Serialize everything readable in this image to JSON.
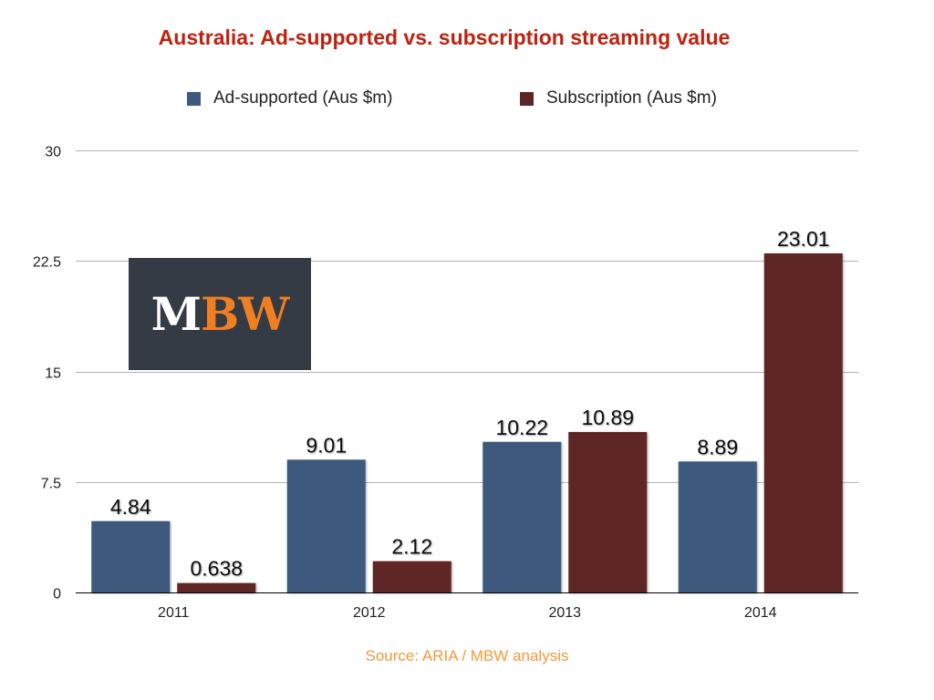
{
  "title": "Australia: Ad-supported vs. subscription streaming value",
  "source": "Source: ARIA / MBW analysis",
  "logo": {
    "text_part1": "M",
    "text_part2": "BW",
    "bg_color": "#353b45",
    "color1": "#ffffff",
    "color2": "#f07f22"
  },
  "colors": {
    "ad_supported": "#3e5a7e",
    "subscription": "#5e2526",
    "title": "#c0210f",
    "source": "#f39a3b"
  },
  "chart_data": {
    "type": "bar",
    "title": "Australia: Ad-supported vs. subscription streaming value",
    "xlabel": "",
    "ylabel": "",
    "categories": [
      "2011",
      "2012",
      "2013",
      "2014"
    ],
    "series": [
      {
        "name": "Ad-supported (Aus $m)",
        "values": [
          4.84,
          9.01,
          10.22,
          8.89
        ],
        "labels": [
          "4.84",
          "9.01",
          "10.22",
          "8.89"
        ]
      },
      {
        "name": "Subscription (Aus $m)",
        "values": [
          0.638,
          2.12,
          10.89,
          23.01
        ],
        "labels": [
          "0.638",
          "2.12",
          "10.89",
          "23.01"
        ]
      }
    ],
    "ylim": [
      0,
      30
    ],
    "yticks": [
      0,
      7.5,
      15,
      22.5,
      30
    ],
    "ytick_labels": [
      "0",
      "7.5",
      "15",
      "22.5",
      "30"
    ],
    "grid": true,
    "legend_position": "top"
  }
}
